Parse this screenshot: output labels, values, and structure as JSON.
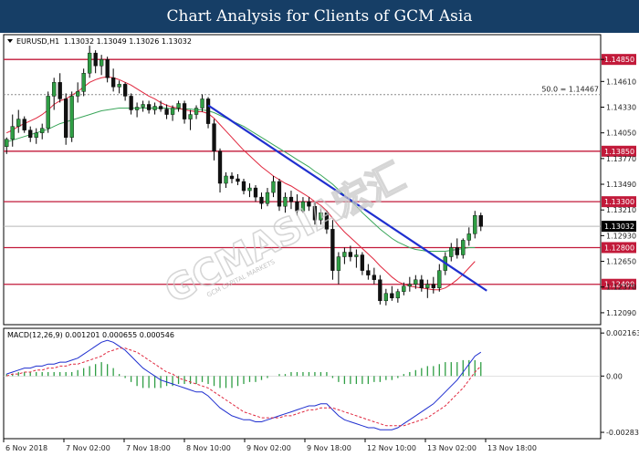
{
  "header": {
    "title": "Chart Analysis for Clients of GCM Asia"
  },
  "watermark": {
    "brand": "GCMASIA宏汇",
    "tagline": "GCM CAPITAL MARKETS"
  },
  "chart_data": [
    {
      "type": "candlestick",
      "symbol_label": "EURUSD,H1",
      "ohlc_label": "1.13032 1.13049 1.13026 1.13032",
      "ylim": [
        1.1196,
        1.1512
      ],
      "yticks": [
        "1.14850",
        "1.14610",
        "1.14330",
        "1.14050",
        "1.13770",
        "1.13490",
        "1.13210",
        "1.12930",
        "1.12650",
        "1.12370",
        "1.12090"
      ],
      "xticks": [
        "6 Nov 2018",
        "7 Nov 02:00",
        "7 Nov 18:00",
        "8 Nov 10:00",
        "9 Nov 02:00",
        "9 Nov 18:00",
        "12 Nov 10:00",
        "13 Nov 02:00",
        "13 Nov 18:00"
      ],
      "levels": [
        {
          "label": "1.14850",
          "value": 1.1485,
          "color": "#c21a3a"
        },
        {
          "label": "1.13850",
          "value": 1.1385,
          "color": "#c21a3a"
        },
        {
          "label": "1.13300",
          "value": 1.133,
          "color": "#c21a3a"
        },
        {
          "label": "1.12800",
          "value": 1.128,
          "color": "#c21a3a"
        },
        {
          "label": "1.12400",
          "value": 1.124,
          "color": "#c21a3a"
        }
      ],
      "fib_label": "50.0 = 1.14467",
      "fib_value": 1.14467,
      "current_price": {
        "label": "1.13032",
        "value": 1.13032
      },
      "trendline": {
        "start": [
          34,
          1.1435
        ],
        "end": [
          81,
          1.1233
        ],
        "color": "#1f2fcf"
      },
      "candles": [
        [
          1.139,
          1.14,
          1.1382,
          1.1398
        ],
        [
          1.1398,
          1.1425,
          1.139,
          1.1412
        ],
        [
          1.1412,
          1.143,
          1.1405,
          1.142
        ],
        [
          1.142,
          1.1423,
          1.1405,
          1.1408
        ],
        [
          1.1408,
          1.1412,
          1.1395,
          1.14
        ],
        [
          1.14,
          1.141,
          1.1393,
          1.1405
        ],
        [
          1.1405,
          1.1415,
          1.1398,
          1.141
        ],
        [
          1.141,
          1.145,
          1.1405,
          1.1445
        ],
        [
          1.1445,
          1.1465,
          1.143,
          1.146
        ],
        [
          1.146,
          1.147,
          1.1438,
          1.1442
        ],
        [
          1.1442,
          1.1448,
          1.1392,
          1.14
        ],
        [
          1.14,
          1.145,
          1.1395,
          1.1445
        ],
        [
          1.1445,
          1.146,
          1.1438,
          1.145
        ],
        [
          1.145,
          1.1475,
          1.1445,
          1.147
        ],
        [
          1.147,
          1.15,
          1.1465,
          1.1492
        ],
        [
          1.1492,
          1.1495,
          1.147,
          1.1478
        ],
        [
          1.1478,
          1.149,
          1.1468,
          1.1485
        ],
        [
          1.1485,
          1.1488,
          1.146,
          1.1465
        ],
        [
          1.1465,
          1.1475,
          1.145,
          1.1455
        ],
        [
          1.1455,
          1.1462,
          1.1448,
          1.1458
        ],
        [
          1.1458,
          1.146,
          1.144,
          1.1445
        ],
        [
          1.1445,
          1.1448,
          1.1425,
          1.143
        ],
        [
          1.143,
          1.1438,
          1.1422,
          1.1433
        ],
        [
          1.1433,
          1.144,
          1.1428,
          1.1436
        ],
        [
          1.1436,
          1.144,
          1.1426,
          1.143
        ],
        [
          1.143,
          1.1438,
          1.1425,
          1.1434
        ],
        [
          1.1434,
          1.144,
          1.1428,
          1.1431
        ],
        [
          1.1431,
          1.1436,
          1.142,
          1.1425
        ],
        [
          1.1425,
          1.1435,
          1.1418,
          1.1432
        ],
        [
          1.1432,
          1.144,
          1.1428,
          1.1437
        ],
        [
          1.1437,
          1.144,
          1.1415,
          1.142
        ],
        [
          1.142,
          1.143,
          1.1408,
          1.1425
        ],
        [
          1.1425,
          1.1435,
          1.142,
          1.1432
        ],
        [
          1.1432,
          1.1447,
          1.1428,
          1.1442
        ],
        [
          1.1442,
          1.1444,
          1.141,
          1.1415
        ],
        [
          1.1415,
          1.142,
          1.1375,
          1.1385
        ],
        [
          1.1385,
          1.1388,
          1.134,
          1.135
        ],
        [
          1.135,
          1.1362,
          1.1345,
          1.1358
        ],
        [
          1.1358,
          1.1362,
          1.135,
          1.1355
        ],
        [
          1.1355,
          1.136,
          1.1348,
          1.1352
        ],
        [
          1.1352,
          1.1355,
          1.1338,
          1.1342
        ],
        [
          1.1342,
          1.135,
          1.1335,
          1.1345
        ],
        [
          1.1345,
          1.1348,
          1.133,
          1.1335
        ],
        [
          1.1335,
          1.134,
          1.1322,
          1.1328
        ],
        [
          1.1328,
          1.1345,
          1.1325,
          1.134
        ],
        [
          1.134,
          1.1358,
          1.1335,
          1.1352
        ],
        [
          1.1352,
          1.1355,
          1.132,
          1.1325
        ],
        [
          1.1325,
          1.134,
          1.1318,
          1.1335
        ],
        [
          1.1335,
          1.1342,
          1.1322,
          1.133
        ],
        [
          1.133,
          1.1338,
          1.1315,
          1.132
        ],
        [
          1.132,
          1.1335,
          1.1318,
          1.133
        ],
        [
          1.133,
          1.1335,
          1.132,
          1.1325
        ],
        [
          1.1325,
          1.133,
          1.1305,
          1.131
        ],
        [
          1.131,
          1.1322,
          1.1305,
          1.1318
        ],
        [
          1.1318,
          1.132,
          1.1295,
          1.13
        ],
        [
          1.13,
          1.131,
          1.1245,
          1.1255
        ],
        [
          1.1255,
          1.1275,
          1.124,
          1.127
        ],
        [
          1.127,
          1.128,
          1.1262,
          1.1275
        ],
        [
          1.1275,
          1.1282,
          1.1265,
          1.127
        ],
        [
          1.127,
          1.1278,
          1.1258,
          1.1272
        ],
        [
          1.1272,
          1.1275,
          1.125,
          1.1255
        ],
        [
          1.1255,
          1.1262,
          1.1245,
          1.125
        ],
        [
          1.125,
          1.1258,
          1.124,
          1.1245
        ],
        [
          1.1245,
          1.125,
          1.1218,
          1.1222
        ],
        [
          1.1222,
          1.1235,
          1.1217,
          1.123
        ],
        [
          1.123,
          1.1238,
          1.1222,
          1.1225
        ],
        [
          1.1225,
          1.1235,
          1.122,
          1.1232
        ],
        [
          1.1232,
          1.1242,
          1.1228,
          1.1238
        ],
        [
          1.1238,
          1.1248,
          1.1232,
          1.124
        ],
        [
          1.124,
          1.125,
          1.1235,
          1.1245
        ],
        [
          1.1245,
          1.125,
          1.1232,
          1.1236
        ],
        [
          1.1236,
          1.1245,
          1.1225,
          1.124
        ],
        [
          1.124,
          1.1248,
          1.123,
          1.1236
        ],
        [
          1.1236,
          1.1262,
          1.1232,
          1.1255
        ],
        [
          1.1255,
          1.1275,
          1.125,
          1.127
        ],
        [
          1.127,
          1.1285,
          1.1265,
          1.128
        ],
        [
          1.128,
          1.129,
          1.1268,
          1.1272
        ],
        [
          1.1272,
          1.129,
          1.1268,
          1.1288
        ],
        [
          1.1288,
          1.1302,
          1.1282,
          1.1295
        ],
        [
          1.1295,
          1.132,
          1.129,
          1.1315
        ],
        [
          1.1315,
          1.1318,
          1.1298,
          1.1303
        ]
      ],
      "ma_red": [
        1.1405,
        1.1408,
        1.1412,
        1.1415,
        1.1418,
        1.1421,
        1.1425,
        1.143,
        1.1436,
        1.144,
        1.1442,
        1.1446,
        1.145,
        1.1455,
        1.146,
        1.1463,
        1.1465,
        1.1466,
        1.1465,
        1.1463,
        1.146,
        1.1457,
        1.1453,
        1.1449,
        1.1445,
        1.1442,
        1.1438,
        1.1435,
        1.1433,
        1.1432,
        1.143,
        1.1429,
        1.1428,
        1.1428,
        1.1426,
        1.1421,
        1.1414,
        1.1407,
        1.14,
        1.1393,
        1.1386,
        1.138,
        1.1374,
        1.1368,
        1.1363,
        1.1358,
        1.1354,
        1.135,
        1.1347,
        1.1343,
        1.1339,
        1.1335,
        1.133,
        1.1326,
        1.132,
        1.1312,
        1.1304,
        1.1297,
        1.1291,
        1.1285,
        1.1279,
        1.1273,
        1.1267,
        1.126,
        1.1254,
        1.1248,
        1.1243,
        1.124,
        1.1238,
        1.1237,
        1.1236,
        1.1235,
        1.1234,
        1.1234,
        1.1236,
        1.124,
        1.1245,
        1.1251,
        1.1258,
        1.1265
      ],
      "ma_green": [
        1.1395,
        1.1397,
        1.1399,
        1.1401,
        1.1403,
        1.1405,
        1.1407,
        1.1409,
        1.1412,
        1.1415,
        1.1417,
        1.1419,
        1.1421,
        1.1423,
        1.1425,
        1.1427,
        1.1429,
        1.143,
        1.1431,
        1.1432,
        1.1432,
        1.1432,
        1.1432,
        1.1432,
        1.1432,
        1.1432,
        1.1432,
        1.1432,
        1.1431,
        1.1431,
        1.1431,
        1.1431,
        1.143,
        1.143,
        1.1429,
        1.1427,
        1.1424,
        1.1421,
        1.1418,
        1.1415,
        1.1412,
        1.1408,
        1.1404,
        1.14,
        1.1396,
        1.1392,
        1.1388,
        1.1384,
        1.138,
        1.1376,
        1.1372,
        1.1368,
        1.1363,
        1.1359,
        1.1354,
        1.1349,
        1.1343,
        1.1337,
        1.1331,
        1.1325,
        1.1318,
        1.1312,
        1.1306,
        1.13,
        1.1295,
        1.129,
        1.1286,
        1.1283,
        1.128,
        1.1278,
        1.1277,
        1.1276,
        1.1276,
        1.1276,
        1.1276,
        1.1277,
        1.1278,
        1.1279,
        1.128,
        1.128
      ]
    },
    {
      "type": "macd",
      "label": "MACD(12,26,9) 0.001201 0.000655 0.000546",
      "ylim": [
        -0.00315,
        0.0024
      ],
      "yticks": [
        "0.002163",
        "0.00",
        "-0.002831"
      ],
      "macd": [
        0.0001,
        0.0002,
        0.0003,
        0.0004,
        0.0004,
        0.0005,
        0.0005,
        0.0006,
        0.0006,
        0.0007,
        0.0007,
        0.0008,
        0.0009,
        0.0011,
        0.0013,
        0.0015,
        0.0017,
        0.0018,
        0.0017,
        0.0015,
        0.0013,
        0.001,
        0.0007,
        0.0004,
        0.0002,
        0.0,
        -0.0002,
        -0.0003,
        -0.0004,
        -0.0005,
        -0.0006,
        -0.0007,
        -0.0008,
        -0.0008,
        -0.001,
        -0.0013,
        -0.0016,
        -0.0018,
        -0.002,
        -0.0021,
        -0.0022,
        -0.0022,
        -0.0023,
        -0.0023,
        -0.0022,
        -0.0021,
        -0.002,
        -0.0019,
        -0.0018,
        -0.0017,
        -0.0016,
        -0.0015,
        -0.0015,
        -0.0014,
        -0.0014,
        -0.0017,
        -0.002,
        -0.0022,
        -0.0023,
        -0.0024,
        -0.0025,
        -0.0026,
        -0.0026,
        -0.0027,
        -0.0027,
        -0.0027,
        -0.0026,
        -0.0024,
        -0.0022,
        -0.002,
        -0.0018,
        -0.0016,
        -0.0014,
        -0.0011,
        -0.0008,
        -0.0005,
        -0.0002,
        0.0002,
        0.0006,
        0.001,
        0.0012
      ],
      "signal": [
        0.0,
        0.0001,
        0.0001,
        0.0002,
        0.0002,
        0.0003,
        0.0003,
        0.0004,
        0.0004,
        0.0005,
        0.0005,
        0.0006,
        0.0006,
        0.0007,
        0.0008,
        0.0009,
        0.001,
        0.0012,
        0.0013,
        0.0014,
        0.0014,
        0.0013,
        0.0012,
        0.001,
        0.0008,
        0.0006,
        0.0004,
        0.0002,
        0.0001,
        -0.0001,
        -0.0002,
        -0.0003,
        -0.0004,
        -0.0005,
        -0.0006,
        -0.0008,
        -0.001,
        -0.0012,
        -0.0014,
        -0.0016,
        -0.0018,
        -0.0019,
        -0.002,
        -0.0021,
        -0.0021,
        -0.0021,
        -0.0021,
        -0.002,
        -0.002,
        -0.0019,
        -0.0018,
        -0.0017,
        -0.0017,
        -0.0016,
        -0.0016,
        -0.0016,
        -0.0017,
        -0.0018,
        -0.0019,
        -0.002,
        -0.0021,
        -0.0022,
        -0.0023,
        -0.0024,
        -0.0025,
        -0.0025,
        -0.0025,
        -0.0025,
        -0.0024,
        -0.0023,
        -0.0022,
        -0.0021,
        -0.0019,
        -0.0017,
        -0.0015,
        -0.0012,
        -0.0009,
        -0.0006,
        -0.0002,
        0.0002,
        0.0005
      ]
    }
  ]
}
